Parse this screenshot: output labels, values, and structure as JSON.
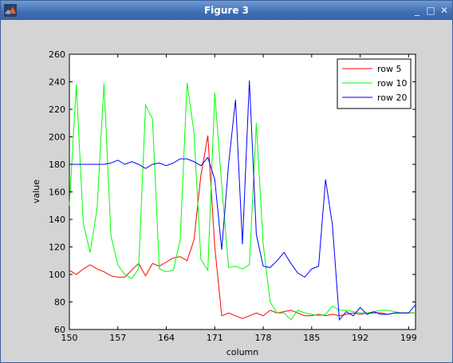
{
  "window": {
    "title": "Figure 3",
    "icon": "matlab-logo-icon",
    "controls": [
      "minimize-icon",
      "maximize-icon",
      "close-icon"
    ],
    "control_glyphs": {
      "minimize": "_",
      "maximize": "□",
      "close": "✕"
    }
  },
  "chart_data": {
    "type": "line",
    "title": "",
    "xlabel": "column",
    "ylabel": "value",
    "xlim": [
      150,
      200
    ],
    "ylim": [
      60,
      260
    ],
    "xticks": [
      150,
      157,
      164,
      171,
      178,
      185,
      192,
      199
    ],
    "yticks": [
      60,
      80,
      100,
      120,
      140,
      160,
      180,
      200,
      220,
      240,
      260
    ],
    "grid": false,
    "legend_position": "top-right",
    "x": [
      150,
      151,
      152,
      153,
      154,
      155,
      156,
      157,
      158,
      159,
      160,
      161,
      162,
      163,
      164,
      165,
      166,
      167,
      168,
      169,
      170,
      171,
      172,
      173,
      174,
      175,
      176,
      177,
      178,
      179,
      180,
      181,
      182,
      183,
      184,
      185,
      186,
      187,
      188,
      189,
      190,
      191,
      192,
      193,
      194,
      195,
      196,
      197,
      198,
      199,
      200
    ],
    "series": [
      {
        "name": "row 5",
        "color": "#ff0000",
        "values": [
          103,
          100,
          104,
          107,
          104,
          102,
          99,
          98,
          98,
          103,
          108,
          99,
          108,
          106,
          109,
          112,
          113,
          110,
          125,
          172,
          201,
          120,
          70,
          72,
          70,
          68,
          70,
          72,
          70,
          74,
          72,
          73,
          74,
          72,
          70,
          70,
          71,
          70,
          71,
          70,
          71,
          72,
          71,
          72,
          72,
          72,
          71,
          72,
          72,
          72,
          72
        ]
      },
      {
        "name": "row 10",
        "color": "#00ff00",
        "values": [
          150,
          238,
          137,
          116,
          148,
          239,
          128,
          107,
          100,
          97,
          104,
          223,
          213,
          104,
          102,
          103,
          125,
          239,
          203,
          111,
          103,
          232,
          165,
          105,
          106,
          104,
          107,
          210,
          122,
          80,
          72,
          72,
          67,
          74,
          72,
          71,
          70,
          71,
          77,
          74,
          74,
          73,
          72,
          72,
          73,
          74,
          74,
          73,
          72,
          72,
          72
        ]
      },
      {
        "name": "row 20",
        "color": "#0000ff",
        "values": [
          180,
          180,
          180,
          180,
          180,
          180,
          181,
          183,
          180,
          182,
          180,
          177,
          180,
          181,
          179,
          181,
          184,
          184,
          182,
          179,
          185,
          169,
          118,
          180,
          227,
          122,
          241,
          129,
          106,
          105,
          110,
          116,
          108,
          101,
          98,
          104,
          106,
          169,
          136,
          67,
          73,
          70,
          76,
          71,
          73,
          71,
          71,
          72,
          72,
          72,
          78
        ]
      }
    ]
  }
}
